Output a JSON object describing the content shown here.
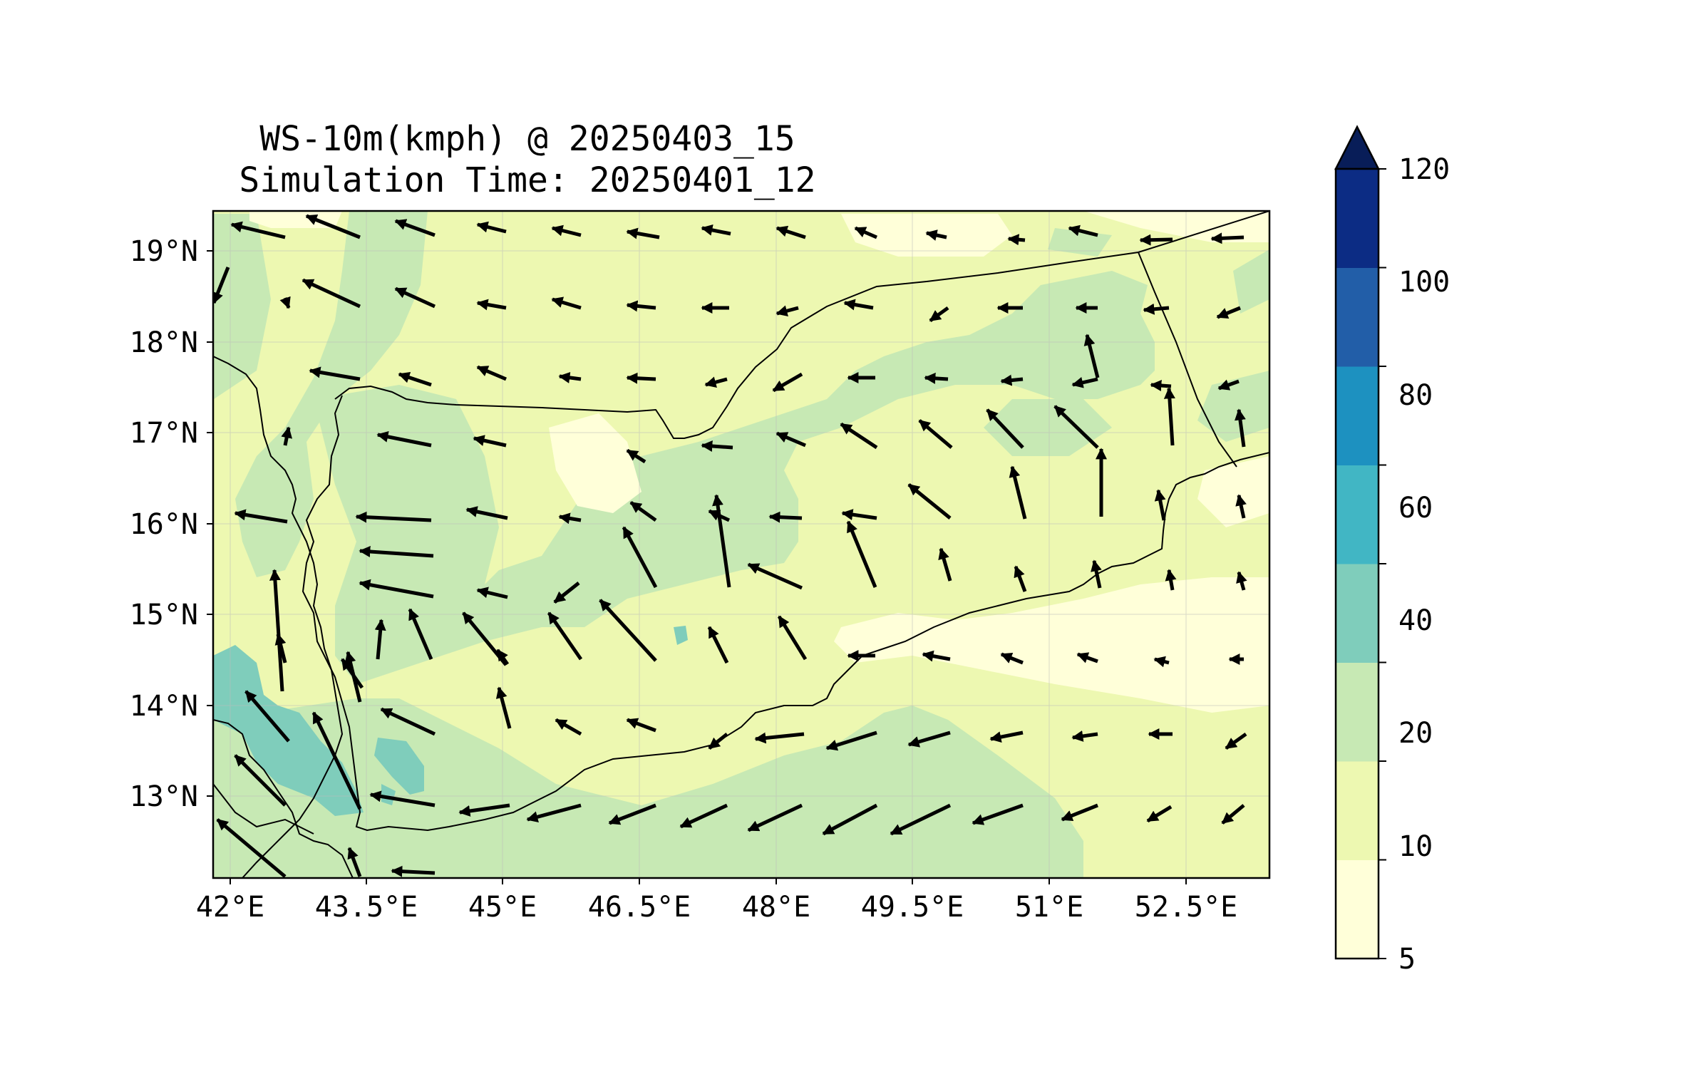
{
  "title": "WS-10m(kmph) @ 20250403_15",
  "subtitle": "Simulation Time: 20250401_12",
  "map": {
    "lon_range": [
      41.9,
      53.5
    ],
    "lat_range": [
      12.1,
      19.45
    ],
    "lon_ticks": [
      "42°E",
      "43.5°E",
      "45°E",
      "46.5°E",
      "48°E",
      "49.5°E",
      "51°E",
      "52.5°E"
    ],
    "lat_ticks": [
      "13°N",
      "14°N",
      "15°N",
      "16°N",
      "17°N",
      "18°N",
      "19°N"
    ],
    "grid": true,
    "variable": "10 m wind speed (kmph) with wind vectors",
    "region": "Yemen and southern Red Sea / Gulf of Aden"
  },
  "colorbar": {
    "levels": [
      "5",
      "10",
      "20",
      "40",
      "60",
      "80",
      "100",
      "120"
    ],
    "colors": [
      "#ffffd9",
      "#edf8b1",
      "#c7e9b4",
      "#7fcdbb",
      "#41b6c4",
      "#1d91c0",
      "#225ea8",
      "#0c2c84"
    ],
    "extend_color": "#081d58",
    "extend": "max"
  },
  "colors": {
    "background_fill": "#edf8b1",
    "arrow": "#000000",
    "border": "#000000"
  }
}
